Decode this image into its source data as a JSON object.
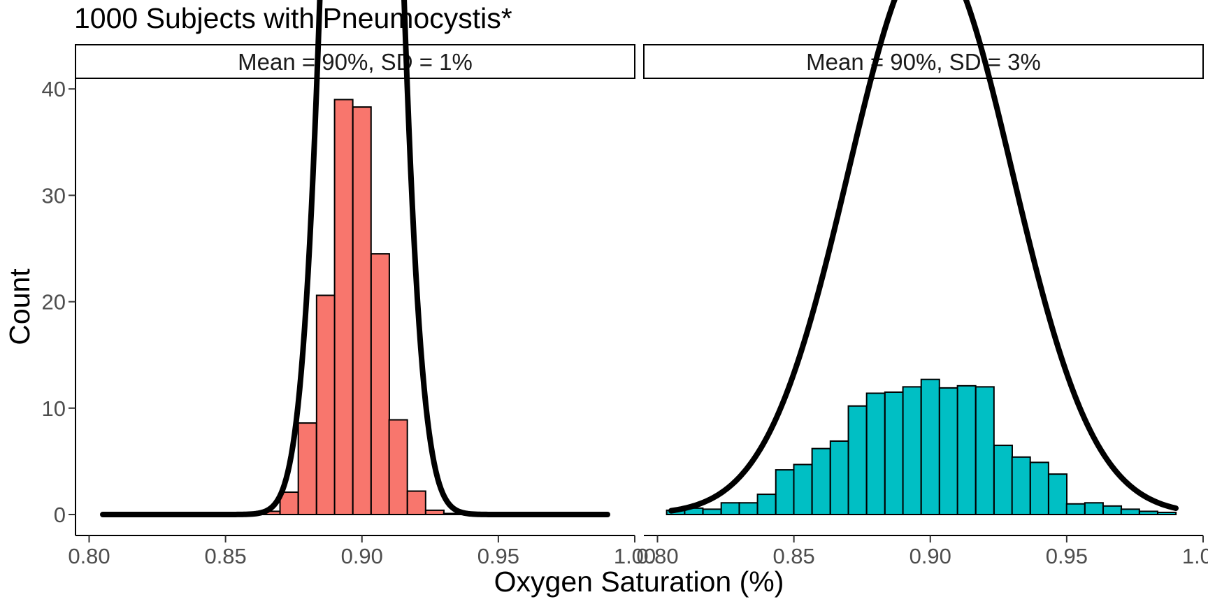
{
  "chart_data": {
    "type": "bar",
    "title": "1000 Subjects with Pneumocystis*",
    "xlabel": "Oxygen Saturation (%)",
    "ylabel": "Count",
    "xlim": [
      0.795,
      1.0
    ],
    "ylim": [
      0,
      41
    ],
    "x_ticks": [
      "0.80",
      "0.85",
      "0.90",
      "0.95",
      "1.00"
    ],
    "y_ticks": [
      "0",
      "10",
      "20",
      "30",
      "40"
    ],
    "grid": false,
    "legend": "none",
    "bin_width": 0.00667,
    "panels": [
      {
        "strip_label": "Mean = 90%, SD = 1%",
        "mean": 0.9,
        "sd": 0.01,
        "fill_color": "#F8766D",
        "bin_centers": [
          0.8667,
          0.8733,
          0.88,
          0.8867,
          0.8933,
          0.9,
          0.9067,
          0.9133,
          0.92,
          0.9267,
          0.9333
        ],
        "counts": [
          0.3,
          2.1,
          8.6,
          20.6,
          39.0,
          38.3,
          24.5,
          8.9,
          2.2,
          0.4,
          0.1
        ],
        "density_x_range": [
          0.805,
          0.99
        ]
      },
      {
        "strip_label": "Mean = 90%, SD = 3%",
        "mean": 0.9,
        "sd": 0.03,
        "fill_color": "#00BFC4",
        "bin_centers": [
          0.8067,
          0.8133,
          0.82,
          0.8267,
          0.8333,
          0.84,
          0.8467,
          0.8533,
          0.86,
          0.8667,
          0.8733,
          0.88,
          0.8867,
          0.8933,
          0.9,
          0.9067,
          0.9133,
          0.92,
          0.9267,
          0.9333,
          0.94,
          0.9467,
          0.9533,
          0.96,
          0.9667,
          0.9733,
          0.98,
          0.9867
        ],
        "counts": [
          0.4,
          0.6,
          0.5,
          1.1,
          1.1,
          1.9,
          4.2,
          4.7,
          6.2,
          6.9,
          10.2,
          11.4,
          11.5,
          12.0,
          12.7,
          11.9,
          12.1,
          12.0,
          6.5,
          5.4,
          4.9,
          3.8,
          1.0,
          1.1,
          0.8,
          0.5,
          0.3,
          0.2
        ],
        "density_x_range": [
          0.805,
          0.99
        ]
      }
    ]
  }
}
